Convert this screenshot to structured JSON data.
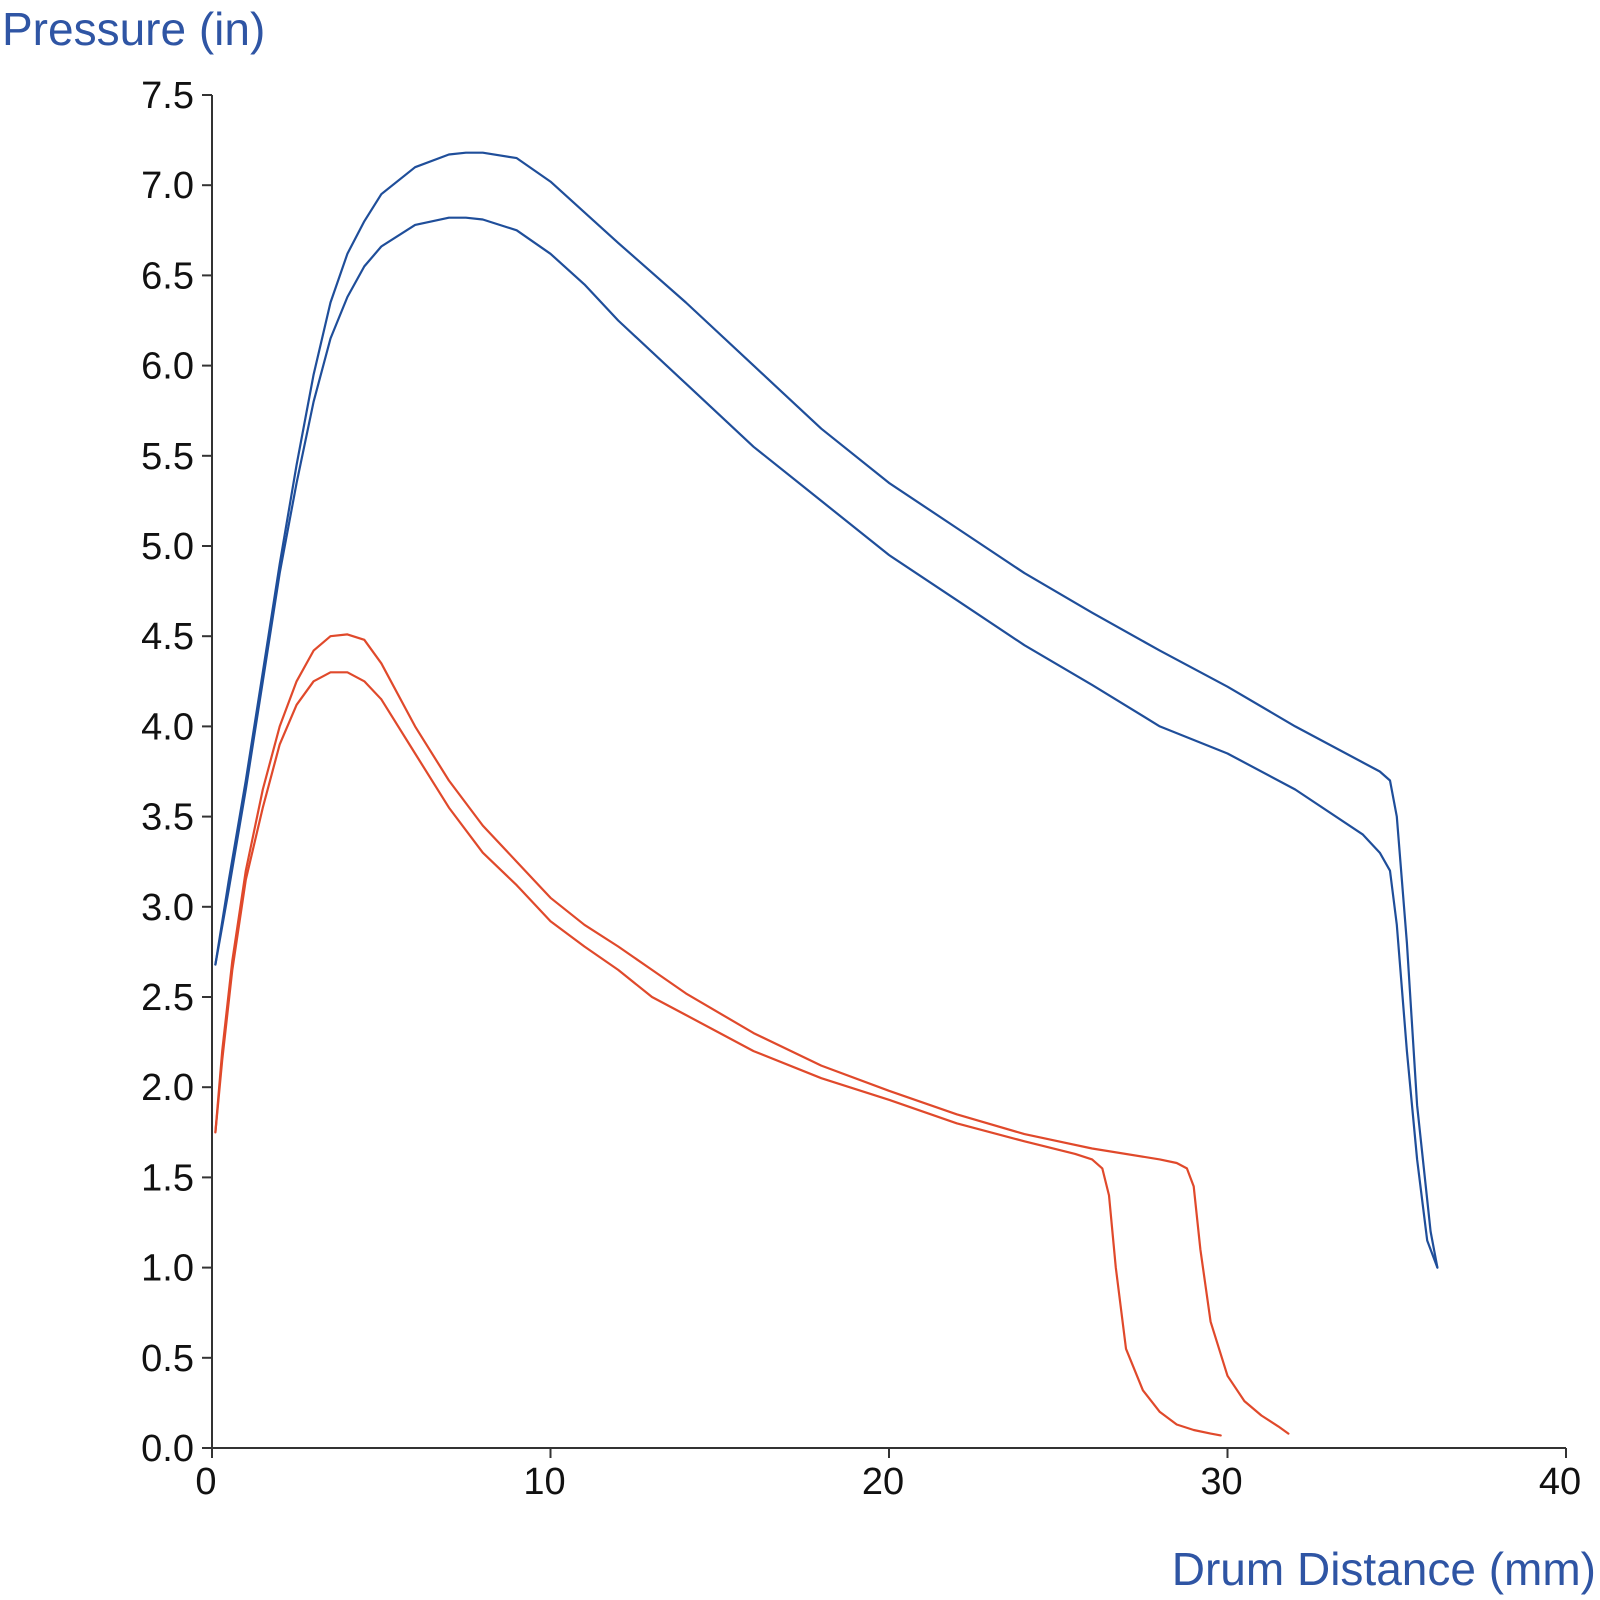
{
  "chart_data": {
    "type": "line",
    "ylabel": "Pressure (in)",
    "xlabel": "Drum Distance (mm)",
    "xlim": [
      0,
      40
    ],
    "ylim": [
      0,
      7.5
    ],
    "xticks": [
      0,
      10,
      20,
      30,
      40
    ],
    "xtick_labels": [
      "0",
      "10",
      "20",
      "30",
      "40"
    ],
    "yticks": [
      0,
      0.5,
      1,
      1.5,
      2,
      2.5,
      3,
      3.5,
      4,
      4.5,
      5,
      5.5,
      6,
      6.5,
      7,
      7.5
    ],
    "ytick_labels": [
      "0.0",
      "0.5",
      "1.0",
      "1.5",
      "2.0",
      "2.5",
      "3.0",
      "3.5",
      "4.0",
      "4.5",
      "5.0",
      "5.5",
      "6.0",
      "6.5",
      "7.0",
      "7.5"
    ],
    "grid": false,
    "colors": {
      "blue_series": "#1f4e9a",
      "red_series": "#e0492b",
      "axis_title": "#2f55a4"
    },
    "series": [
      {
        "color": "#1f4e9a",
        "x": [
          0.1,
          0.5,
          1.0,
          1.5,
          2.0,
          2.5,
          3.0,
          3.5,
          4.0,
          4.5,
          5.0,
          6.0,
          7.0,
          7.5,
          8.0,
          9.0,
          10.0,
          11.0,
          12.0,
          14.0,
          16.0,
          18.0,
          20.0,
          22.0,
          24.0,
          26.0,
          28.0,
          30.0,
          32.0,
          34.0,
          34.5,
          34.8,
          35.0,
          35.3,
          35.6,
          36.0,
          36.2
        ],
        "y": [
          2.68,
          3.15,
          3.7,
          4.3,
          4.9,
          5.45,
          5.95,
          6.35,
          6.62,
          6.8,
          6.95,
          7.1,
          7.17,
          7.18,
          7.18,
          7.15,
          7.02,
          6.85,
          6.68,
          6.35,
          6.0,
          5.65,
          5.35,
          5.1,
          4.85,
          4.63,
          4.42,
          4.22,
          4.0,
          3.8,
          3.75,
          3.7,
          3.5,
          2.8,
          1.9,
          1.2,
          1.0
        ]
      },
      {
        "color": "#1f4e9a",
        "x": [
          0.1,
          0.5,
          1.0,
          1.5,
          2.0,
          2.5,
          3.0,
          3.5,
          4.0,
          4.5,
          5.0,
          6.0,
          7.0,
          7.5,
          8.0,
          9.0,
          10.0,
          11.0,
          12.0,
          14.0,
          16.0,
          18.0,
          20.0,
          22.0,
          24.0,
          26.0,
          28.0,
          30.0,
          32.0,
          34.0,
          34.5,
          34.8,
          35.0,
          35.3,
          35.6,
          35.9,
          36.2
        ],
        "y": [
          2.68,
          3.1,
          3.65,
          4.25,
          4.85,
          5.35,
          5.8,
          6.15,
          6.38,
          6.55,
          6.66,
          6.78,
          6.82,
          6.82,
          6.81,
          6.75,
          6.62,
          6.45,
          6.25,
          5.9,
          5.55,
          5.25,
          4.95,
          4.7,
          4.45,
          4.23,
          4.0,
          3.85,
          3.65,
          3.4,
          3.3,
          3.2,
          2.9,
          2.2,
          1.6,
          1.15,
          1.0
        ]
      },
      {
        "color": "#e0492b",
        "x": [
          0.1,
          0.3,
          0.6,
          1.0,
          1.5,
          2.0,
          2.5,
          3.0,
          3.5,
          4.0,
          4.5,
          5.0,
          6.0,
          7.0,
          8.0,
          9.0,
          10.0,
          11.0,
          12.0,
          13.0,
          14.0,
          16.0,
          18.0,
          20.0,
          22.0,
          24.0,
          26.0,
          28.0,
          28.5,
          28.8,
          29.0,
          29.2,
          29.5,
          30.0,
          30.5,
          31.0,
          31.5,
          31.8
        ],
        "y": [
          1.75,
          2.2,
          2.7,
          3.2,
          3.65,
          4.0,
          4.25,
          4.42,
          4.5,
          4.51,
          4.48,
          4.35,
          4.0,
          3.7,
          3.45,
          3.25,
          3.05,
          2.9,
          2.78,
          2.65,
          2.52,
          2.3,
          2.12,
          1.98,
          1.85,
          1.74,
          1.66,
          1.6,
          1.58,
          1.55,
          1.45,
          1.1,
          0.7,
          0.4,
          0.26,
          0.18,
          0.12,
          0.08
        ]
      },
      {
        "color": "#e0492b",
        "x": [
          0.1,
          0.3,
          0.6,
          1.0,
          1.5,
          2.0,
          2.5,
          3.0,
          3.5,
          4.0,
          4.5,
          5.0,
          6.0,
          7.0,
          8.0,
          9.0,
          10.0,
          11.0,
          12.0,
          13.0,
          14.0,
          16.0,
          18.0,
          20.0,
          22.0,
          24.0,
          25.5,
          26.0,
          26.3,
          26.5,
          26.7,
          27.0,
          27.5,
          28.0,
          28.5,
          29.0,
          29.5,
          29.8
        ],
        "y": [
          1.75,
          2.15,
          2.65,
          3.15,
          3.55,
          3.9,
          4.12,
          4.25,
          4.3,
          4.3,
          4.25,
          4.15,
          3.85,
          3.55,
          3.3,
          3.12,
          2.92,
          2.78,
          2.65,
          2.5,
          2.4,
          2.2,
          2.05,
          1.93,
          1.8,
          1.7,
          1.63,
          1.6,
          1.55,
          1.4,
          1.0,
          0.55,
          0.32,
          0.2,
          0.13,
          0.1,
          0.08,
          0.07
        ]
      }
    ]
  }
}
